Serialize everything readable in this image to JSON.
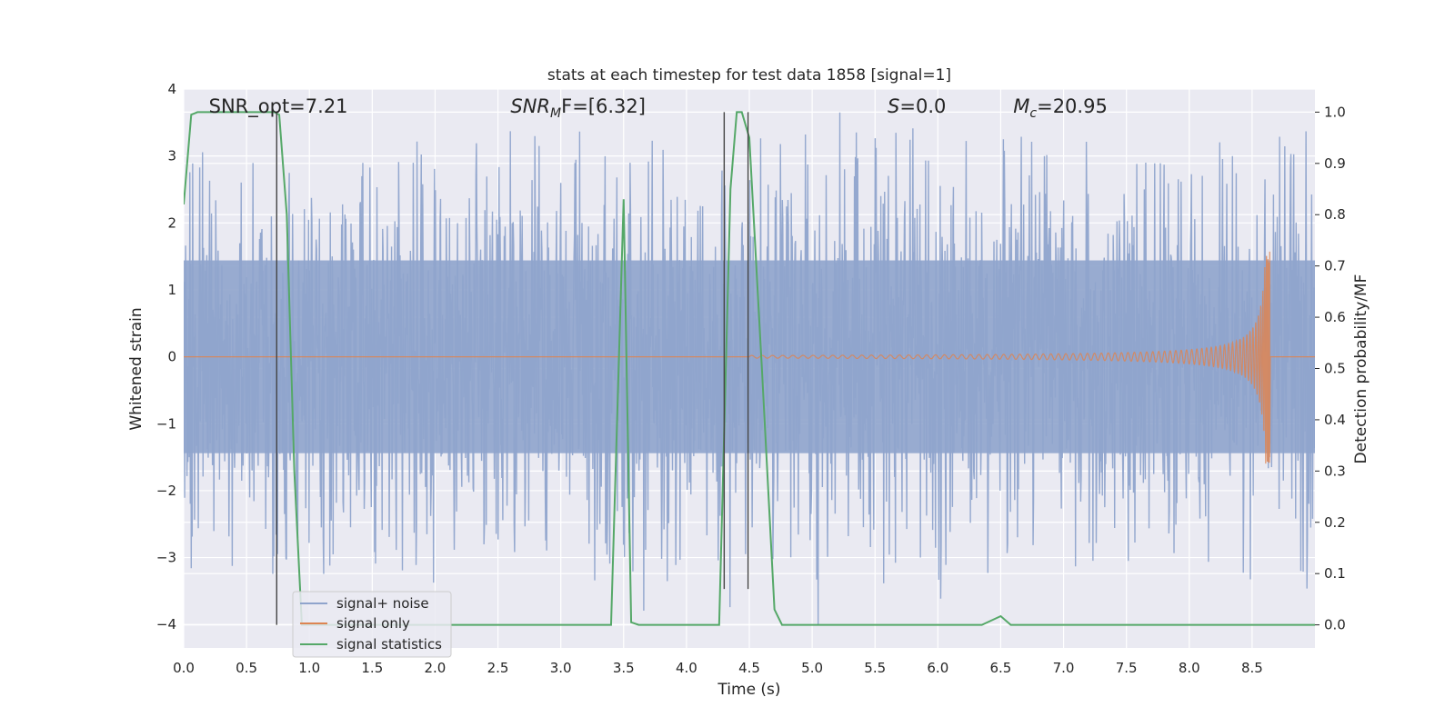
{
  "chart_data": {
    "type": "line",
    "title": "stats at each timestep for test data 1858 [signal=1]",
    "xlabel": "Time (s)",
    "ylabel": "Whitened strain",
    "y2label": "Detection probability/MF",
    "xlim": [
      0.0,
      9.0
    ],
    "ylim": [
      -4.35,
      4.0
    ],
    "y2lim": [
      -0.045,
      1.045
    ],
    "xticks": [
      0.0,
      0.5,
      1.0,
      1.5,
      2.0,
      2.5,
      3.0,
      3.5,
      4.0,
      4.5,
      5.0,
      5.5,
      6.0,
      6.5,
      7.0,
      7.5,
      8.0,
      8.5
    ],
    "yticks": [
      4,
      3,
      2,
      1,
      0,
      -1,
      -2,
      -3,
      -4
    ],
    "y2ticks": [
      0.0,
      0.1,
      0.2,
      0.3,
      0.4,
      0.5,
      0.6,
      0.7,
      0.8,
      0.9,
      1.0
    ],
    "grid": true,
    "legend_position": "lower-left",
    "annotations": [
      {
        "prefix": "SNR_opt=7.21",
        "italic": "",
        "sub": "",
        "rest": "",
        "x": 0.2
      },
      {
        "prefix": "",
        "italic": "SNR",
        "sub": "M",
        "rest": "F=[6.32]",
        "x": 2.6
      },
      {
        "prefix": "",
        "italic": "S",
        "sub": "",
        "rest": "=0.0",
        "x": 5.6
      },
      {
        "prefix": "",
        "italic": "M",
        "sub": "c",
        "rest": "=20.95",
        "x": 6.6
      }
    ],
    "vertical_lines": [
      {
        "x": 0.74,
        "y2_bottom": 0.0,
        "y2_top": 1.0
      },
      {
        "x": 4.3,
        "y2_bottom": 0.07,
        "y2_top": 1.0
      },
      {
        "x": 4.49,
        "y2_bottom": 0.07,
        "y2_top": 1.0
      }
    ],
    "series": [
      {
        "name": "signal+ noise",
        "color": "#8fa4cc",
        "kind": "noise",
        "noise_envelope": {
          "core": 2.0,
          "max_peak": 3.65,
          "min_peak": -4.0
        }
      },
      {
        "name": "signal only",
        "color": "#dd8452",
        "kind": "chirp",
        "chirp": {
          "start": 4.5,
          "end": 8.64,
          "amp_max": 1.6
        }
      },
      {
        "name": "signal statistics",
        "color": "#55a868",
        "axis": "right",
        "x": [
          0.0,
          0.06,
          0.11,
          0.2,
          0.4,
          0.6,
          0.72,
          0.76,
          0.82,
          0.88,
          0.94,
          1.0,
          3.4,
          3.5,
          3.56,
          3.62,
          4.26,
          4.35,
          4.4,
          4.44,
          4.5,
          4.6,
          4.7,
          4.76,
          6.35,
          6.5,
          6.58,
          9.0
        ],
        "y": [
          0.82,
          0.995,
          1.0,
          1.0,
          1.0,
          1.0,
          1.0,
          0.995,
          0.8,
          0.3,
          0.0,
          0.0,
          0.0,
          0.83,
          0.005,
          0.0,
          0.0,
          0.85,
          1.0,
          1.0,
          0.95,
          0.5,
          0.03,
          0.0,
          0.0,
          0.017,
          0.0,
          0.0
        ]
      }
    ]
  }
}
